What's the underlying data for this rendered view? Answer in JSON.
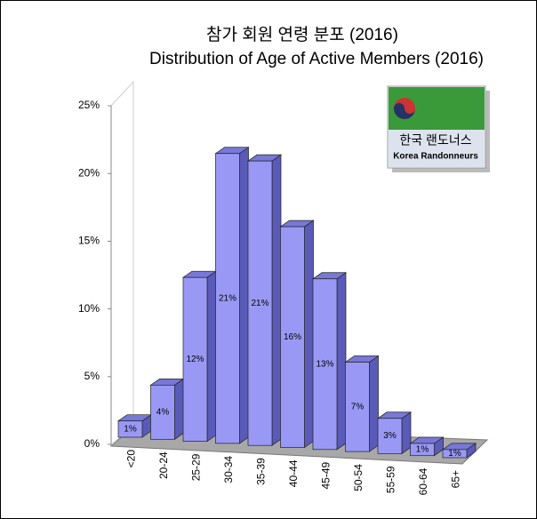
{
  "chart_data": {
    "type": "bar3d",
    "title": "참가 회원 연령 분포  (2016)",
    "subtitle": "Distribution of Age of Active Members (2016)",
    "categories": [
      "<20",
      "20-24",
      "25-29",
      "30-34",
      "35-39",
      "40-44",
      "45-49",
      "50-54",
      "55-59",
      "60-64",
      "65+"
    ],
    "values": [
      1.2,
      4.0,
      12.1,
      21.4,
      21.0,
      16.3,
      12.6,
      6.6,
      2.6,
      0.9,
      0.6
    ],
    "value_labels": [
      "1%",
      "4%",
      "12%",
      "21%",
      "21%",
      "16%",
      "13%",
      "7%",
      "3%",
      "1%",
      "1%"
    ],
    "color": "#9999f5",
    "ylim": [
      0,
      25
    ],
    "yticks": [
      {
        "value": 0,
        "label": "0%"
      },
      {
        "value": 5,
        "label": "5%"
      },
      {
        "value": 10,
        "label": "10%"
      },
      {
        "value": 15,
        "label": "15%"
      },
      {
        "value": 20,
        "label": "20%"
      },
      {
        "value": 25,
        "label": "25%"
      }
    ]
  },
  "logo": {
    "korean": "한국 랜도너스",
    "english": "Korea Randonneurs"
  }
}
